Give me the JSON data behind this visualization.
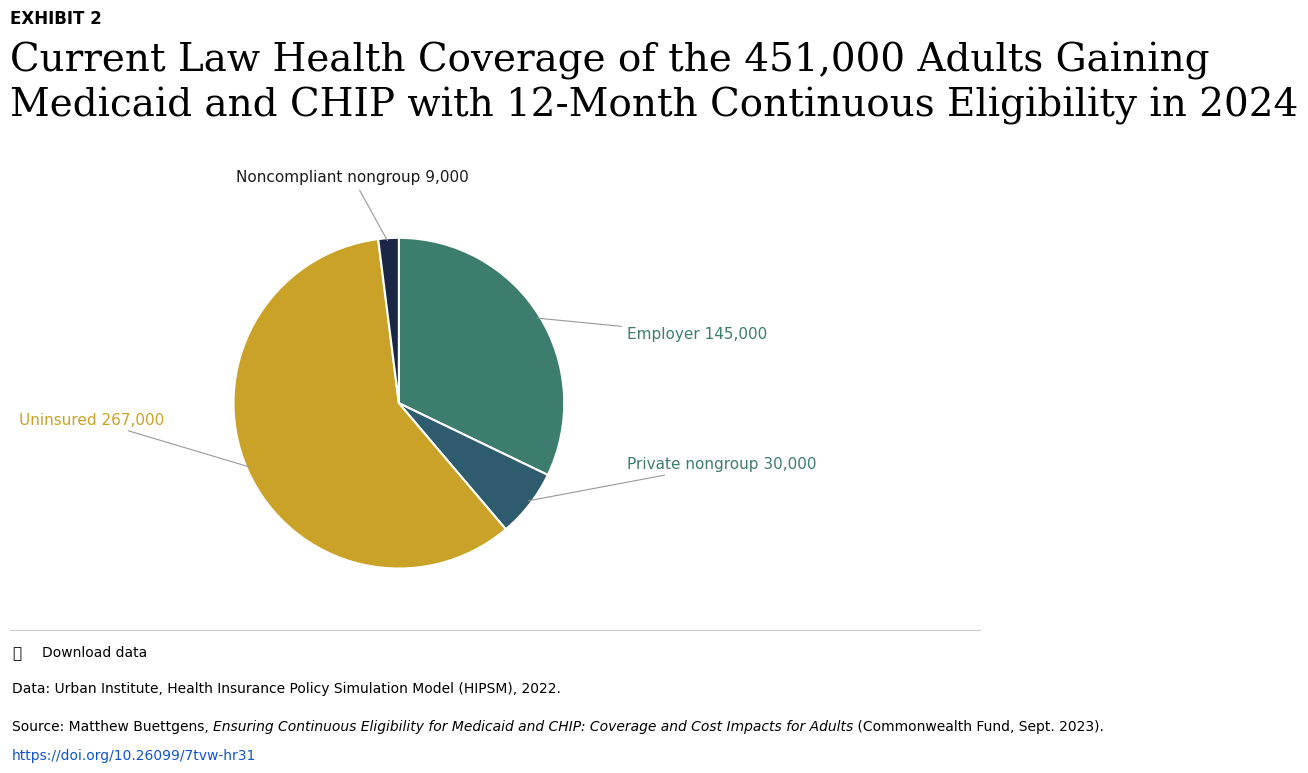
{
  "title_line1": "Current Law Health Coverage of the 451,000 Adults Gaining",
  "title_line2": "Medicaid and CHIP with 12-Month Continuous Eligibility in 2024",
  "exhibit_label": "EXHIBIT 2",
  "slices": [
    {
      "label": "Employer 145,000",
      "value": 145000,
      "color": "#3d7d6e"
    },
    {
      "label": "Private nongroup 30,000",
      "value": 30000,
      "color": "#2e5b6e"
    },
    {
      "label": "Uninsured 267,000",
      "value": 267000,
      "color": "#c9a227"
    },
    {
      "label": "Noncompliant nongroup 9,000",
      "value": 9000,
      "color": "#1a2744"
    }
  ],
  "annotation_colors": {
    "Employer 145,000": "#3d7d6e",
    "Private nongroup 30,000": "#3d7d6e",
    "Uninsured 267,000": "#c9a227",
    "Noncompliant nongroup 9,000": "#1a1a1a"
  },
  "data_note": "Data: Urban Institute, Health Insurance Policy Simulation Model (HIPSM), 2022.",
  "source_normal": "Source: Matthew Buettgens, ",
  "source_italic": "Ensuring Continuous Eligibility for Medicaid and CHIP: Coverage and Cost Impacts for Adults",
  "source_end": " (Commonwealth Fund, Sept. 2023).",
  "source_url": "https://doi.org/10.26099/7tvw-hr31",
  "download_label": "Download data",
  "background_color": "#ffffff",
  "title_fontsize": 28,
  "exhibit_fontsize": 12,
  "annotation_fontsize": 11,
  "footer_fontsize": 10
}
